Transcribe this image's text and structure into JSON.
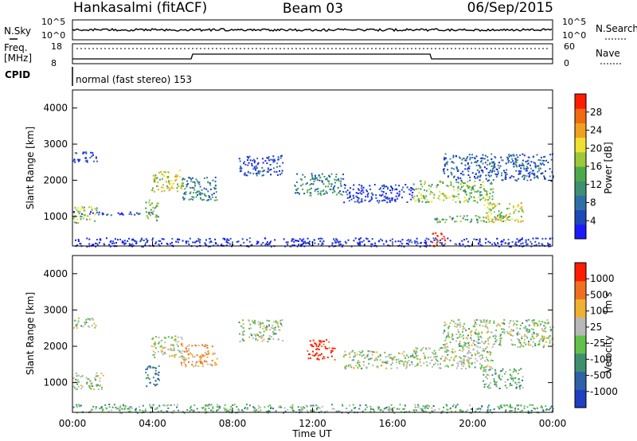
{
  "header": {
    "station": "Hankasalmi (fitACF)",
    "beam": "Beam 03",
    "date": "06/Sep/2015"
  },
  "summary": {
    "left_label_1": "N.Sky",
    "left_label_2": "Freq.",
    "left_label_3": "[MHz]",
    "left_label_4": "CPID",
    "right_label_1": "N.Search",
    "right_label_2": "Nave",
    "sky_ticks": [
      "10^5",
      "10^0"
    ],
    "search_ticks": [
      "10^5",
      "10^0"
    ],
    "freq_ticks": [
      "18",
      "8"
    ],
    "nave_ticks": [
      "60",
      "0"
    ],
    "cpid_text": "normal (fast stereo) 153"
  },
  "chart_data": [
    {
      "type": "heatmap",
      "name": "power",
      "ylabel": "Slant Range [km]",
      "ylim": [
        180,
        4500
      ],
      "yticks": [
        "1000",
        "2000",
        "3000",
        "4000"
      ],
      "xlim": [
        0,
        24
      ],
      "colorbar_label": "Power [dB]",
      "colorbar_ticks": [
        "4",
        "8",
        "12",
        "16",
        "20",
        "24",
        "28"
      ],
      "colorscale": [
        "#1a1aff",
        "#1f49b8",
        "#2f6fa8",
        "#3f8f73",
        "#4bab4b",
        "#9cc83a",
        "#f0e030",
        "#f0a020",
        "#f06a10",
        "#ff1d00"
      ],
      "bands": [
        {
          "x": [
            0.0,
            1.2
          ],
          "y": [
            2500,
            2800
          ],
          "level": 0.15
        },
        {
          "x": [
            0.0,
            1.2
          ],
          "y": [
            820,
            1300
          ],
          "level": 0.55
        },
        {
          "x": [
            0.0,
            4.0
          ],
          "y": [
            1050,
            1150
          ],
          "level": 0.1
        },
        {
          "x": [
            3.6,
            4.3
          ],
          "y": [
            900,
            1500
          ],
          "level": 0.45
        },
        {
          "x": [
            3.9,
            5.5
          ],
          "y": [
            1700,
            2300
          ],
          "level": 0.6
        },
        {
          "x": [
            5.4,
            7.2
          ],
          "y": [
            1450,
            2100
          ],
          "level": 0.3
        },
        {
          "x": [
            8.3,
            10.5
          ],
          "y": [
            2150,
            2700
          ],
          "level": 0.15
        },
        {
          "x": [
            11.0,
            13.5
          ],
          "y": [
            1600,
            2200
          ],
          "level": 0.3
        },
        {
          "x": [
            13.5,
            17.0
          ],
          "y": [
            1400,
            1900
          ],
          "level": 0.1
        },
        {
          "x": [
            17.0,
            21.0
          ],
          "y": [
            1400,
            2000
          ],
          "level": 0.5
        },
        {
          "x": [
            18.5,
            24.0
          ],
          "y": [
            2000,
            2750
          ],
          "level": 0.2
        },
        {
          "x": [
            18.0,
            21.5
          ],
          "y": [
            850,
            1050
          ],
          "level": 0.45
        },
        {
          "x": [
            20.5,
            22.5
          ],
          "y": [
            850,
            1400
          ],
          "level": 0.6
        },
        {
          "x": [
            17.9,
            18.6
          ],
          "y": [
            180,
            600
          ],
          "level": 0.95
        },
        {
          "x": [
            0.0,
            24.0
          ],
          "y": [
            180,
            420
          ],
          "level": 0.05
        }
      ]
    },
    {
      "type": "heatmap",
      "name": "velocity",
      "ylabel": "Slant Range [km]",
      "ylim": [
        180,
        4500
      ],
      "yticks": [
        "1000",
        "2000",
        "3000",
        "4000"
      ],
      "xlim": [
        0,
        24
      ],
      "xlabel": "Time UT",
      "xticks": [
        "00:00",
        "04:00",
        "08:00",
        "12:00",
        "16:00",
        "20:00",
        "00:00"
      ],
      "colorbar_label": "Velocity",
      "colorbar_unit": "[m s",
      "colorbar_ticks": [
        "1000",
        "500",
        "100",
        "25",
        "-25",
        "-100",
        "-500",
        "-1000"
      ],
      "colorscale": [
        "#1f3fc0",
        "#2f62a8",
        "#3f8f6f",
        "#62c04b",
        "#b8b8b8",
        "#f0b030",
        "#f07020",
        "#ff1d00"
      ],
      "bands": [
        {
          "x": [
            0.0,
            1.2
          ],
          "y": [
            2500,
            2800
          ],
          "level": 0.5
        },
        {
          "x": [
            0.0,
            1.5
          ],
          "y": [
            820,
            1300
          ],
          "level": 0.5
        },
        {
          "x": [
            3.6,
            4.3
          ],
          "y": [
            900,
            1500
          ],
          "level": 0.2
        },
        {
          "x": [
            3.9,
            5.5
          ],
          "y": [
            1700,
            2300
          ],
          "level": 0.55
        },
        {
          "x": [
            5.4,
            7.2
          ],
          "y": [
            1450,
            2100
          ],
          "level": 0.7
        },
        {
          "x": [
            8.3,
            10.5
          ],
          "y": [
            2150,
            2750
          ],
          "level": 0.5
        },
        {
          "x": [
            11.7,
            13.1
          ],
          "y": [
            1650,
            2200
          ],
          "level": 0.95
        },
        {
          "x": [
            13.5,
            17.0
          ],
          "y": [
            1400,
            1900
          ],
          "level": 0.5
        },
        {
          "x": [
            17.0,
            21.0
          ],
          "y": [
            1400,
            2000
          ],
          "level": 0.5
        },
        {
          "x": [
            18.5,
            24.0
          ],
          "y": [
            2000,
            2750
          ],
          "level": 0.5
        },
        {
          "x": [
            20.5,
            22.5
          ],
          "y": [
            850,
            1400
          ],
          "level": 0.4
        },
        {
          "x": [
            0.0,
            24.0
          ],
          "y": [
            180,
            420
          ],
          "level": 0.4
        }
      ]
    }
  ]
}
